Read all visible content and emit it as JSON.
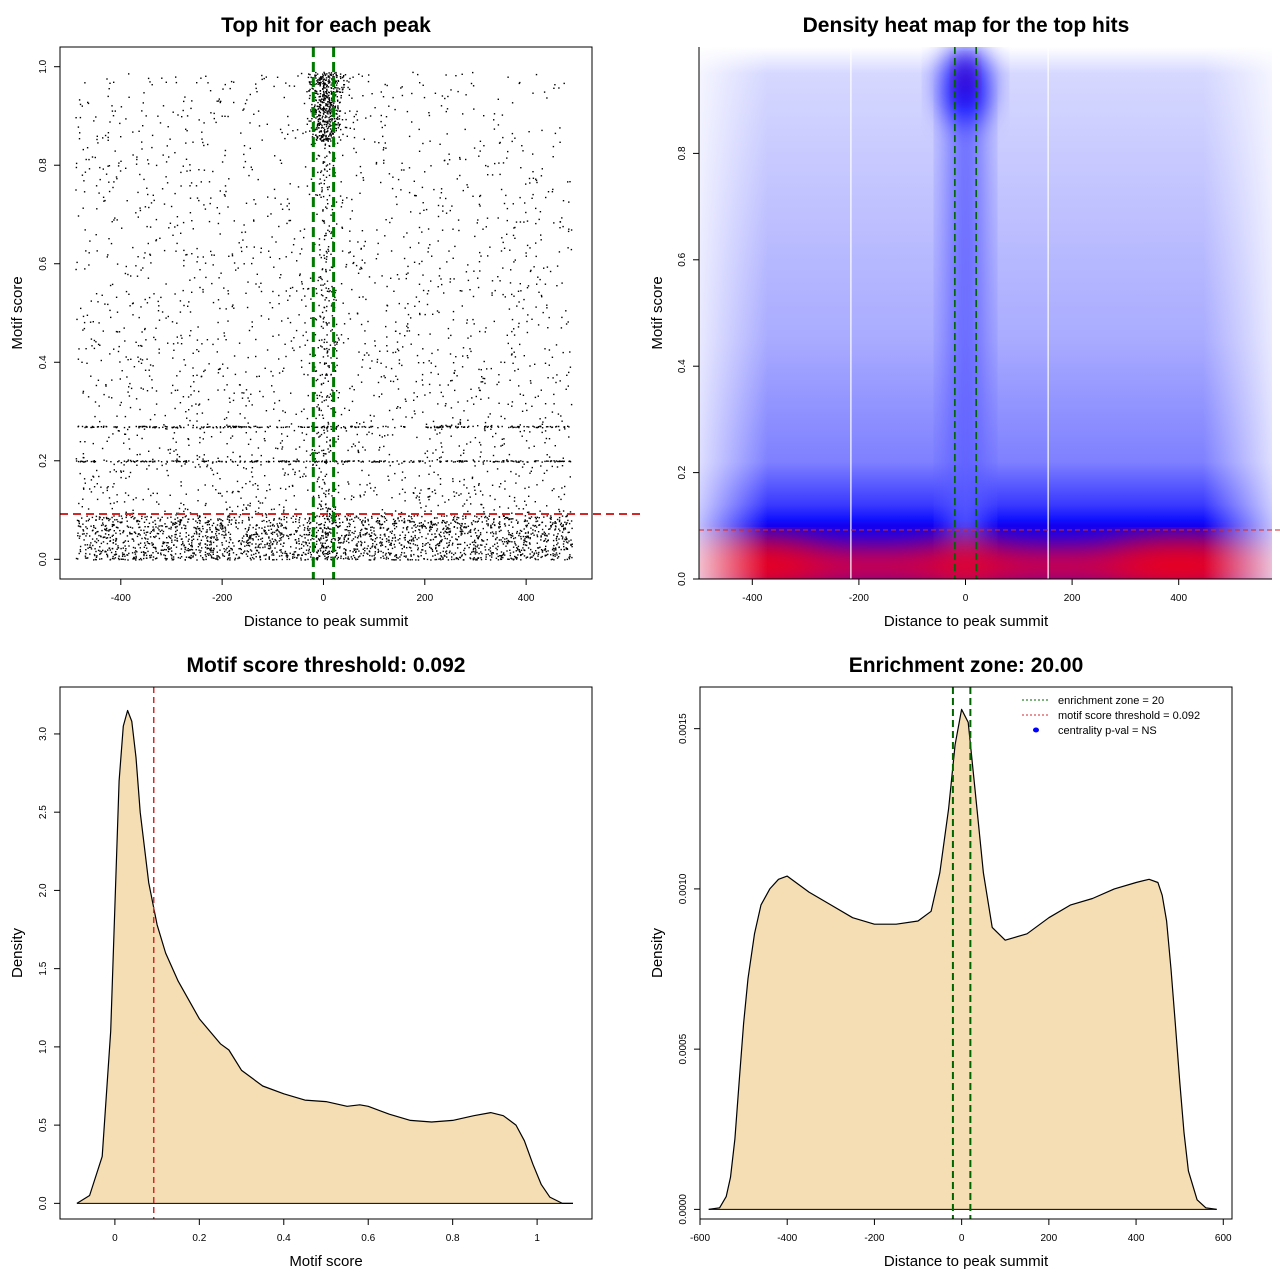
{
  "chart_data": [
    {
      "id": "scatter",
      "type": "scatter",
      "title": "Top hit for each peak",
      "xlabel": "Distance to peak summit",
      "ylabel": "Motif score",
      "xlim": [
        -520,
        530
      ],
      "ylim": [
        -0.04,
        1.04
      ],
      "x_ticks": [
        -400,
        -200,
        0,
        200,
        400
      ],
      "y_ticks": [
        0.0,
        0.2,
        0.4,
        0.6,
        0.8,
        1.0
      ],
      "x_range": [
        -490,
        490
      ],
      "point_count_rendered": 4500,
      "central_cluster": {
        "x_center": 5,
        "y_range": [
          0.85,
          0.99
        ]
      },
      "horizontal_bands": [
        0.27,
        0.2
      ],
      "threshold_line": {
        "y": 0.092,
        "color": "#d62728"
      },
      "enrichment_lines": {
        "x": [
          -20,
          20
        ],
        "color": "#007a00"
      },
      "grid": false
    },
    {
      "id": "heatmap",
      "type": "heatmap",
      "title": "Density heat map for the top hits",
      "xlabel": "Distance to peak summit",
      "ylabel": "Motif score",
      "xlim": [
        -500,
        500
      ],
      "ylim": [
        0,
        1.0
      ],
      "x_ticks": [
        -400,
        -200,
        0,
        200,
        400
      ],
      "y_ticks": [
        0.0,
        0.2,
        0.4,
        0.6,
        0.8
      ],
      "hotspots": [
        {
          "x": -400,
          "y": 0.03,
          "level": "high"
        },
        {
          "x": 400,
          "y": 0.03,
          "level": "high"
        },
        {
          "x": 0,
          "y": 0.03,
          "level": "medium"
        },
        {
          "x": 0,
          "y": 0.93,
          "level": "high"
        }
      ],
      "white_vlines": [
        -215,
        155
      ],
      "threshold_line": {
        "y": 0.092,
        "color": "#d62728"
      },
      "enrichment_lines": {
        "x": [
          -20,
          20
        ],
        "color": "#006400"
      },
      "colors": {
        "low": "#ffffff",
        "mid": "#0000ff",
        "high": "#ff0000"
      }
    },
    {
      "id": "score_density",
      "type": "area",
      "title": "Motif score threshold: 0.092",
      "xlabel": "Motif score",
      "ylabel": "Density",
      "xlim": [
        -0.13,
        1.13
      ],
      "ylim": [
        -0.1,
        3.3
      ],
      "x_ticks": [
        0.0,
        0.2,
        0.4,
        0.6,
        0.8,
        1.0
      ],
      "y_ticks": [
        0.0,
        0.5,
        1.0,
        1.5,
        2.0,
        2.5,
        3.0
      ],
      "x": [
        -0.09,
        -0.06,
        -0.03,
        -0.01,
        0.0,
        0.01,
        0.02,
        0.03,
        0.04,
        0.05,
        0.06,
        0.08,
        0.1,
        0.12,
        0.15,
        0.2,
        0.25,
        0.27,
        0.3,
        0.35,
        0.4,
        0.45,
        0.5,
        0.55,
        0.58,
        0.6,
        0.65,
        0.7,
        0.75,
        0.8,
        0.85,
        0.89,
        0.92,
        0.95,
        0.97,
        0.99,
        1.01,
        1.03,
        1.06,
        1.085
      ],
      "y": [
        0.0,
        0.05,
        0.3,
        1.1,
        1.9,
        2.7,
        3.05,
        3.15,
        3.08,
        2.85,
        2.5,
        2.05,
        1.78,
        1.6,
        1.42,
        1.18,
        1.02,
        0.98,
        0.85,
        0.75,
        0.7,
        0.66,
        0.65,
        0.62,
        0.63,
        0.62,
        0.57,
        0.53,
        0.52,
        0.53,
        0.56,
        0.58,
        0.56,
        0.5,
        0.4,
        0.25,
        0.12,
        0.04,
        0.0,
        0.0
      ],
      "fill": "#f5deb3",
      "threshold_line": {
        "x": 0.092,
        "color": "#d62728"
      }
    },
    {
      "id": "distance_density",
      "type": "area",
      "title": "Enrichment zone: 20.00",
      "xlabel": "Distance to peak summit",
      "ylabel": "Density",
      "xlim": [
        -600,
        620
      ],
      "ylim": [
        -3e-05,
        0.00163
      ],
      "x_ticks": [
        -600,
        -400,
        -200,
        0,
        200,
        400,
        600
      ],
      "y_ticks": [
        0.0,
        0.0005,
        0.001,
        0.0015
      ],
      "y_tick_labels": [
        "0.0000",
        "0.0005",
        "0.0010",
        "0.0015"
      ],
      "x": [
        -580,
        -555,
        -540,
        -530,
        -520,
        -510,
        -500,
        -490,
        -475,
        -460,
        -440,
        -420,
        -400,
        -380,
        -350,
        -300,
        -250,
        -200,
        -150,
        -100,
        -70,
        -50,
        -30,
        -15,
        0,
        15,
        30,
        50,
        70,
        100,
        150,
        200,
        250,
        300,
        350,
        400,
        430,
        450,
        460,
        470,
        480,
        490,
        500,
        510,
        520,
        540,
        560,
        585
      ],
      "y": [
        0.0,
        5e-06,
        4e-05,
        0.0001,
        0.00022,
        0.0004,
        0.00058,
        0.00072,
        0.00086,
        0.00095,
        0.001,
        0.00103,
        0.00104,
        0.00102,
        0.00099,
        0.00095,
        0.00091,
        0.00089,
        0.00089,
        0.0009,
        0.00093,
        0.00105,
        0.00125,
        0.00145,
        0.00156,
        0.00152,
        0.00132,
        0.00105,
        0.00088,
        0.00084,
        0.00086,
        0.00091,
        0.00095,
        0.00097,
        0.001,
        0.00102,
        0.00103,
        0.00102,
        0.00098,
        0.0009,
        0.00075,
        0.00058,
        0.0004,
        0.00024,
        0.00012,
        3e-05,
        5e-06,
        0.0
      ],
      "fill": "#f5deb3",
      "enrichment_lines": {
        "x": [
          -20,
          20
        ],
        "color": "#006400"
      },
      "legend": {
        "position": "top-right",
        "entries": [
          {
            "label": "enrichment zone = 20",
            "style": "dotted",
            "color": "#006400"
          },
          {
            "label": "motif score threshold = 0.092",
            "style": "dotted",
            "color": "#d62728"
          },
          {
            "label": "centrality p-val = NS",
            "style": "point",
            "color": "#0000ff"
          }
        ]
      }
    }
  ]
}
